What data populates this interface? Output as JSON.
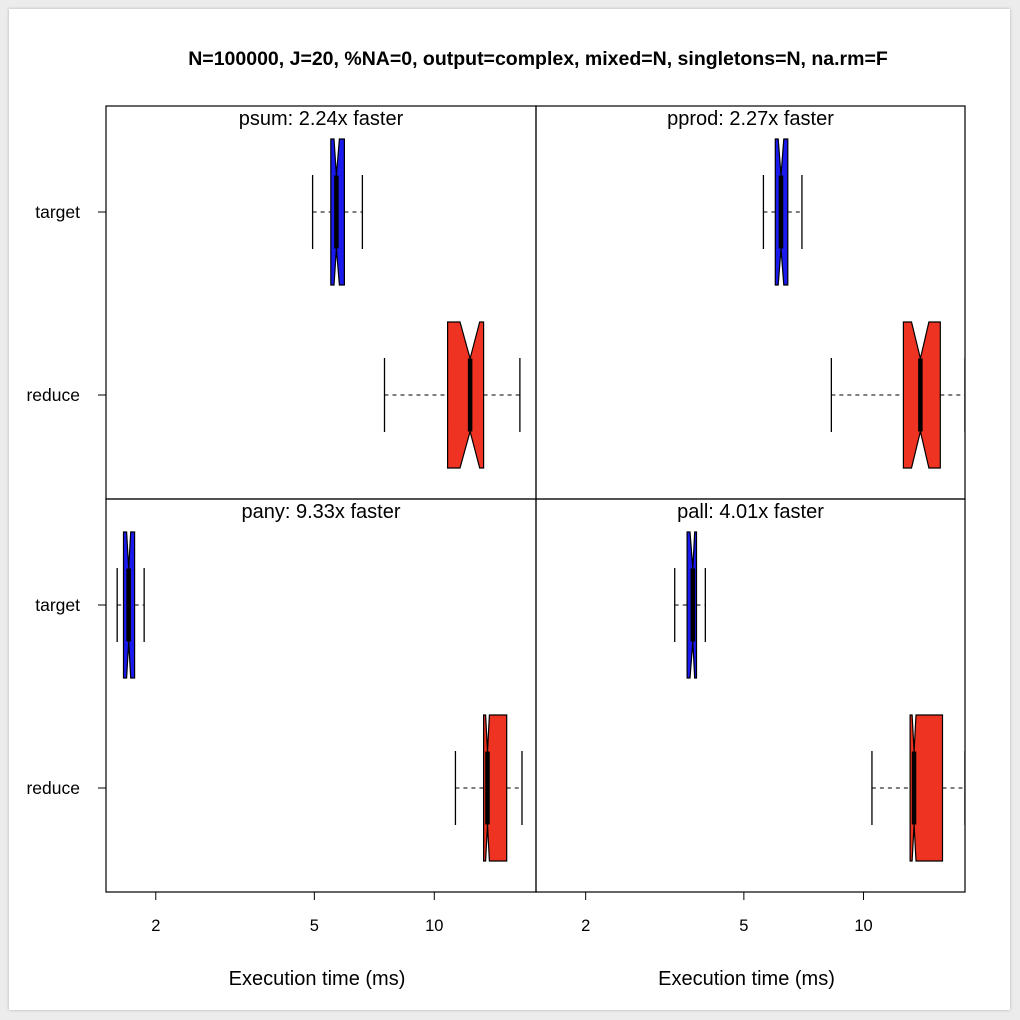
{
  "chart_data": {
    "type": "boxplot",
    "title": "N=100000, J=20, %NA=0, output=complex, mixed=N, singletons=N, na.rm=F",
    "xlabel": "Execution time (ms)",
    "x_scale": "log",
    "xlim": [
      1.5,
      18
    ],
    "xticks": [
      2,
      5,
      10
    ],
    "xtick_labels": [
      "2",
      "5",
      "10"
    ],
    "categories": [
      "target",
      "reduce"
    ],
    "colors": {
      "target": "#1a1aee",
      "reduce": "#ee3322"
    },
    "grid": false,
    "legend": "none",
    "panels": [
      {
        "title": "psum: 2.24x faster",
        "boxes": [
          {
            "category": "target",
            "whisker_low": 4.95,
            "q1": 5.5,
            "median": 5.68,
            "q3": 5.95,
            "whisker_high": 6.6,
            "notch_low": 5.6,
            "notch_high": 5.78
          },
          {
            "category": "reduce",
            "whisker_low": 7.5,
            "q1": 10.8,
            "median": 12.3,
            "q3": 13.3,
            "whisker_high": 16.4,
            "notch_low": 11.6,
            "notch_high": 13.0
          }
        ]
      },
      {
        "title": "pprod: 2.27x faster",
        "boxes": [
          {
            "category": "target",
            "whisker_low": 5.6,
            "q1": 6.0,
            "median": 6.2,
            "q3": 6.45,
            "whisker_high": 7.0,
            "notch_low": 6.1,
            "notch_high": 6.3
          },
          {
            "category": "reduce",
            "whisker_low": 8.3,
            "q1": 12.6,
            "median": 13.9,
            "q3": 15.6,
            "whisker_high": 18.0,
            "notch_low": 13.2,
            "notch_high": 14.6
          }
        ]
      },
      {
        "title": "pany: 9.33x faster",
        "boxes": [
          {
            "category": "target",
            "whisker_low": 1.6,
            "q1": 1.66,
            "median": 1.71,
            "q3": 1.77,
            "whisker_high": 1.87,
            "notch_low": 1.69,
            "notch_high": 1.73
          },
          {
            "category": "reduce",
            "whisker_low": 11.3,
            "q1": 13.3,
            "median": 13.6,
            "q3": 15.2,
            "whisker_high": 16.6,
            "notch_low": 13.45,
            "notch_high": 13.75
          }
        ]
      },
      {
        "title": "pall: 4.01x faster",
        "boxes": [
          {
            "category": "target",
            "whisker_low": 3.35,
            "q1": 3.6,
            "median": 3.72,
            "q3": 3.8,
            "whisker_high": 4.0,
            "notch_low": 3.66,
            "notch_high": 3.76
          },
          {
            "category": "reduce",
            "whisker_low": 10.5,
            "q1": 13.1,
            "median": 13.4,
            "q3": 15.8,
            "whisker_high": 18.0,
            "notch_low": 13.25,
            "notch_high": 13.55
          }
        ]
      }
    ]
  }
}
